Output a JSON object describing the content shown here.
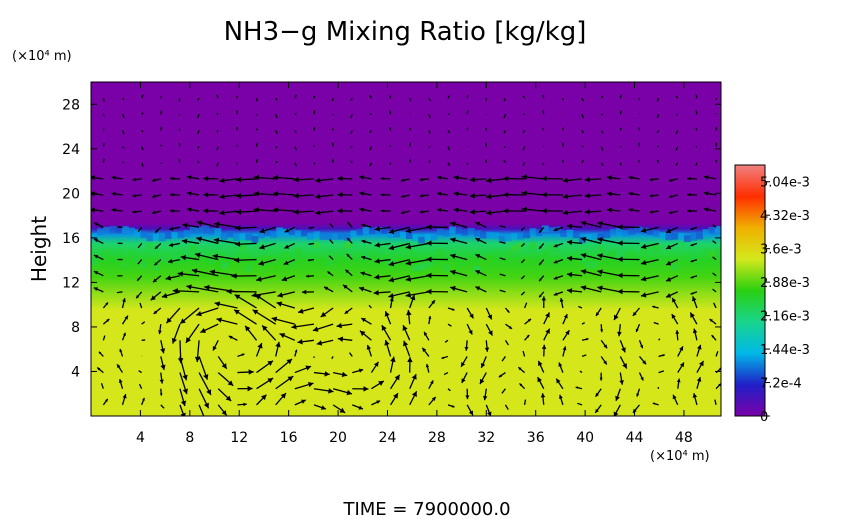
{
  "chart_data": {
    "type": "heatmap",
    "title": "NH3−g Mixing Ratio [kg/kg]",
    "ylabel": "Height",
    "y_unit": "(×10⁴ m)",
    "x_unit": "(×10⁴ m)",
    "footer": "TIME  =  7900000.0",
    "xlim": [
      0,
      51
    ],
    "ylim": [
      0,
      30
    ],
    "x_ticks": [
      4,
      8,
      12,
      16,
      20,
      24,
      28,
      32,
      36,
      40,
      44,
      48
    ],
    "y_ticks": [
      4,
      8,
      12,
      16,
      20,
      24,
      28
    ],
    "colorbar": {
      "min": 0,
      "max": 0.0054,
      "tick_values": [
        0,
        0.00072,
        0.00144,
        0.00216,
        0.00288,
        0.0036,
        0.00432,
        0.00504
      ],
      "tick_labels": [
        "0",
        "7.2e-4",
        "1.44e-3",
        "2.16e-3",
        "2.88e-3",
        "3.6e-3",
        "4.32e-3",
        "5.04e-3"
      ],
      "colors": [
        "#7a00a8",
        "#2020c8",
        "#00b8e8",
        "#18d48c",
        "#2ad010",
        "#d4e81c",
        "#f0b000",
        "#ff2e00",
        "#f08080"
      ]
    },
    "field_profile": [
      {
        "height": 0,
        "value": 0.0034
      },
      {
        "height": 9.5,
        "value": 0.0034
      },
      {
        "height": 11,
        "value": 0.0031
      },
      {
        "height": 12.5,
        "value": 0.0028
      },
      {
        "height": 14,
        "value": 0.0026
      },
      {
        "height": 15.5,
        "value": 0.0022
      },
      {
        "height": 16.3,
        "value": 0.0012
      },
      {
        "height": 16.8,
        "value": 0.0004
      },
      {
        "height": 17.3,
        "value": 0
      },
      {
        "height": 30,
        "value": 0
      }
    ],
    "wind_vectors": "overlaid",
    "vortex_centers": [
      {
        "x": 19,
        "y": 5
      },
      {
        "x": 13.5,
        "y": 5
      },
      {
        "x": 9,
        "y": 6
      }
    ]
  }
}
